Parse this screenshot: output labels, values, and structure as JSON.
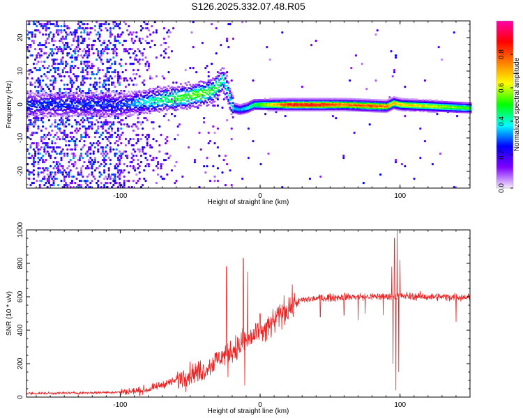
{
  "title": "S126.2025.332.07.48.R05",
  "chart_data": [
    {
      "type": "heatmap",
      "title": "S126.2025.332.07.48.R05",
      "xlabel": "Height of straight line (km)",
      "ylabel": "Frequency (Hz)",
      "xlim": [
        -167,
        150
      ],
      "ylim": [
        -25,
        25
      ],
      "xticks": [
        -100,
        0,
        100
      ],
      "yticks": [
        -20,
        -10,
        0,
        10,
        20
      ],
      "xtick_labels": [
        "-100",
        "0",
        "100"
      ],
      "ytick_labels": [
        "-20",
        "-10",
        "0",
        "10",
        "20"
      ],
      "colorbar": {
        "label": "Normalized spectral amplitude",
        "range": [
          0,
          1
        ],
        "ticks": [
          0,
          0.2,
          0.4,
          0.6,
          0.8
        ],
        "tick_labels": [
          "0.0",
          "0.2",
          "0.4",
          "0.6",
          "0.8"
        ],
        "colors": [
          "#f4eefc",
          "#8000ff",
          "#0000ff",
          "#00ffff",
          "#00ff00",
          "#ffff00",
          "#ff8000",
          "#ff0000",
          "#ff00aa"
        ]
      },
      "description_points": {
        "ridge_frequency_hz": [
          [
            -100,
            0
          ],
          [
            -80,
            1
          ],
          [
            -60,
            2
          ],
          [
            -45,
            3
          ],
          [
            -35,
            4
          ],
          [
            -30,
            6
          ],
          [
            -27,
            8
          ],
          [
            -20,
            -1
          ],
          [
            -15,
            -1.5
          ],
          [
            -10,
            -1
          ],
          [
            -5,
            0
          ],
          [
            0,
            0
          ],
          [
            10,
            0
          ],
          [
            20,
            0
          ],
          [
            60,
            0
          ],
          [
            90,
            -0.5
          ],
          [
            95,
            0.5
          ],
          [
            100,
            0
          ],
          [
            150,
            -1
          ]
        ],
        "peak_amplitude": [
          [
            -100,
            0.3
          ],
          [
            -80,
            0.45
          ],
          [
            -60,
            0.55
          ],
          [
            -40,
            0.6
          ],
          [
            -25,
            0.45
          ],
          [
            -15,
            0.35
          ],
          [
            0,
            0.6
          ],
          [
            20,
            0.95
          ],
          [
            40,
            0.95
          ],
          [
            60,
            0.85
          ],
          [
            80,
            0.9
          ],
          [
            100,
            0.75
          ],
          [
            120,
            0.7
          ],
          [
            150,
            0.55
          ]
        ]
      }
    },
    {
      "type": "line",
      "xlabel": "Height of straight line (km)",
      "ylabel": "SNR (10 * v/v)",
      "xlim": [
        -167,
        150
      ],
      "ylim": [
        0,
        1000
      ],
      "xticks": [
        -100,
        0,
        100
      ],
      "yticks": [
        0,
        200,
        400,
        600,
        800,
        1000
      ],
      "xtick_labels": [
        "-100",
        "0",
        "100"
      ],
      "ytick_labels": [
        "0",
        "200",
        "400",
        "600",
        "800",
        "1000"
      ],
      "color": "#ee2222",
      "series": [
        {
          "name": "SNR",
          "baseline": {
            "x": [
              -167,
              -140,
              -120,
              -100,
              -90,
              -80,
              -70,
              -60,
              -50,
              -40,
              -30,
              -20,
              -15,
              -10,
              -5,
              0,
              5,
              10,
              15,
              20,
              25,
              30,
              40,
              60,
              80,
              100,
              120,
              150
            ],
            "y": [
              22,
              24,
              26,
              30,
              35,
              45,
              75,
              100,
              140,
              160,
              230,
              280,
              300,
              340,
              360,
              380,
              410,
              450,
              500,
              530,
              560,
              580,
              590,
              600,
              600,
              605,
              600,
              598
            ]
          },
          "spikes": [
            {
              "x": -24,
              "y": 780
            },
            {
              "x": -23,
              "y": 120
            },
            {
              "x": -12,
              "y": 830
            },
            {
              "x": -11,
              "y": 70
            },
            {
              "x": -9,
              "y": 750
            },
            {
              "x": 0,
              "y": 500
            },
            {
              "x": 94,
              "y": 780
            },
            {
              "x": 95,
              "y": 200
            },
            {
              "x": 96,
              "y": 950
            },
            {
              "x": 97,
              "y": 40
            },
            {
              "x": 98,
              "y": 1000
            },
            {
              "x": 99,
              "y": 150
            },
            {
              "x": 100,
              "y": 820
            }
          ],
          "dips": [
            {
              "x": 43,
              "y": 480
            },
            {
              "x": 60,
              "y": 490
            },
            {
              "x": 70,
              "y": 460
            },
            {
              "x": 75,
              "y": 500
            },
            {
              "x": 88,
              "y": 490
            },
            {
              "x": 140,
              "y": 450
            }
          ]
        }
      ]
    }
  ]
}
